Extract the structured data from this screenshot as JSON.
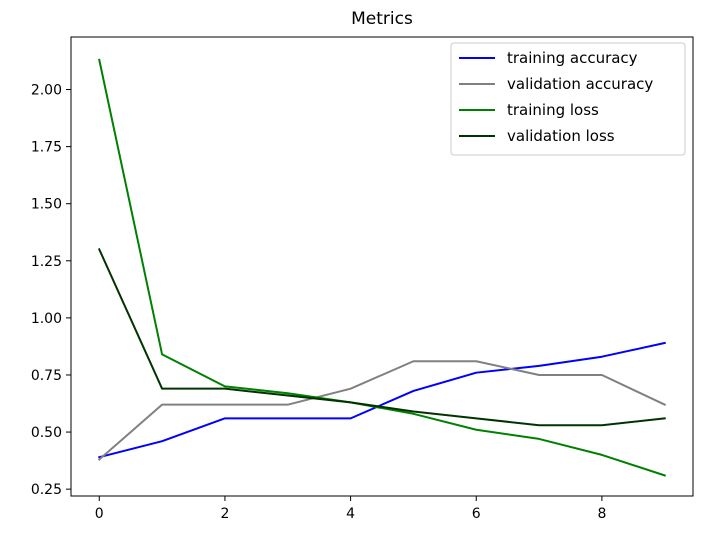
{
  "chart_data": {
    "type": "line",
    "title": "Metrics",
    "xlabel": "",
    "ylabel": "",
    "x": [
      0,
      1,
      2,
      3,
      4,
      5,
      6,
      7,
      8,
      9
    ],
    "xlim": [
      -0.45,
      9.45
    ],
    "ylim": [
      0.22,
      2.23
    ],
    "xticks": [
      0,
      2,
      4,
      6,
      8
    ],
    "xtick_labels": [
      "0",
      "2",
      "4",
      "6",
      "8"
    ],
    "yticks": [
      0.25,
      0.5,
      0.75,
      1.0,
      1.25,
      1.5,
      1.75,
      2.0
    ],
    "ytick_labels": [
      "0.25",
      "0.50",
      "0.75",
      "1.00",
      "1.25",
      "1.50",
      "1.75",
      "2.00"
    ],
    "grid": false,
    "legend_position": "top-right",
    "series": [
      {
        "name": "training accuracy",
        "color": "#0000ff",
        "values": [
          0.39,
          0.46,
          0.56,
          0.56,
          0.56,
          0.68,
          0.76,
          0.79,
          0.83,
          0.89
        ]
      },
      {
        "name": "validation accuracy",
        "color": "#808080",
        "values": [
          0.38,
          0.62,
          0.62,
          0.62,
          0.69,
          0.81,
          0.81,
          0.75,
          0.75,
          0.62
        ]
      },
      {
        "name": "training loss",
        "color": "#008000",
        "values": [
          2.13,
          0.84,
          0.7,
          0.67,
          0.63,
          0.58,
          0.51,
          0.47,
          0.4,
          0.31
        ]
      },
      {
        "name": "validation loss",
        "color": "#003300",
        "values": [
          1.3,
          0.69,
          0.69,
          0.66,
          0.63,
          0.59,
          0.56,
          0.53,
          0.53,
          0.56
        ]
      }
    ]
  }
}
